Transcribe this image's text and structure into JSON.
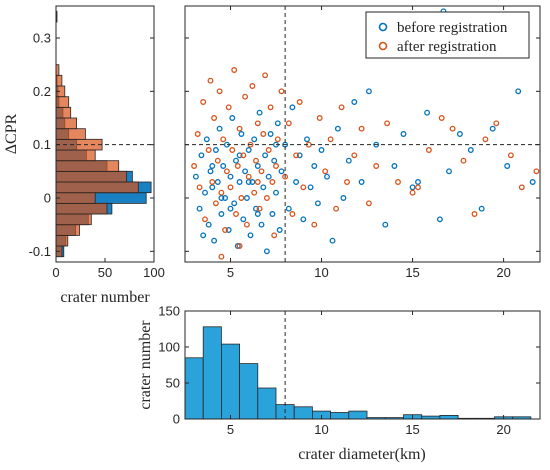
{
  "chart_data": [
    {
      "id": "scatter",
      "type": "scatter",
      "ylabel": "ΔCPR",
      "xlim": [
        2.5,
        22
      ],
      "ylim": [
        -0.12,
        0.36
      ],
      "xticks": [
        5,
        10,
        15,
        20
      ],
      "yticks": [
        -0.1,
        0,
        0.1,
        0.2,
        0.3
      ],
      "ytick_labels": [
        "-0.1",
        "0",
        "0.1",
        "0.2",
        "0.3"
      ],
      "legend_position": "top-right",
      "reference_lines": {
        "x": 8,
        "y": 0.1
      },
      "series": [
        {
          "name": "before registration",
          "color": "#0072BD",
          "points": [
            [
              3.1,
              0.04
            ],
            [
              3.3,
              -0.02
            ],
            [
              3.4,
              0.08
            ],
            [
              3.6,
              0.01
            ],
            [
              3.7,
              0.11
            ],
            [
              3.8,
              -0.05
            ],
            [
              3.9,
              0.05
            ],
            [
              4.0,
              0.02
            ],
            [
              4.1,
              -0.08
            ],
            [
              4.2,
              0.09
            ],
            [
              4.3,
              0.03
            ],
            [
              4.4,
              0.13
            ],
            [
              4.5,
              -0.03
            ],
            [
              4.6,
              0.06
            ],
            [
              4.7,
              0.0
            ],
            [
              4.8,
              0.1
            ],
            [
              4.9,
              -0.06
            ],
            [
              5.0,
              0.04
            ],
            [
              5.1,
              0.15
            ],
            [
              5.2,
              -0.01
            ],
            [
              5.3,
              0.07
            ],
            [
              5.4,
              -0.09
            ],
            [
              5.5,
              0.03
            ],
            [
              5.6,
              0.12
            ],
            [
              5.7,
              -0.04
            ],
            [
              5.8,
              0.05
            ],
            [
              5.9,
              0.0
            ],
            [
              6.0,
              0.09
            ],
            [
              6.1,
              -0.07
            ],
            [
              6.2,
              0.03
            ],
            [
              6.3,
              0.11
            ],
            [
              6.4,
              -0.02
            ],
            [
              6.5,
              0.06
            ],
            [
              6.6,
              0.16
            ],
            [
              6.7,
              -0.05
            ],
            [
              6.8,
              0.02
            ],
            [
              6.9,
              0.08
            ],
            [
              7.0,
              -0.1
            ],
            [
              7.1,
              0.04
            ],
            [
              7.2,
              0.12
            ],
            [
              7.3,
              -0.03
            ],
            [
              7.4,
              0.07
            ],
            [
              7.5,
              0.01
            ],
            [
              7.6,
              0.14
            ],
            [
              7.7,
              -0.06
            ],
            [
              7.8,
              0.05
            ],
            [
              8.0,
              0.1
            ],
            [
              8.2,
              -0.02
            ],
            [
              8.4,
              0.17
            ],
            [
              8.6,
              0.03
            ],
            [
              8.8,
              0.08
            ],
            [
              9.0,
              -0.04
            ],
            [
              9.2,
              0.11
            ],
            [
              9.4,
              0.02
            ],
            [
              9.6,
              0.06
            ],
            [
              9.8,
              -0.01
            ],
            [
              10.0,
              0.09
            ],
            [
              10.3,
              0.04
            ],
            [
              10.6,
              -0.08
            ],
            [
              10.9,
              0.13
            ],
            [
              11.2,
              0.0
            ],
            [
              11.5,
              0.07
            ],
            [
              11.8,
              0.18
            ],
            [
              12.2,
              0.03
            ],
            [
              12.6,
              0.2
            ],
            [
              13.0,
              0.1
            ],
            [
              13.5,
              -0.05
            ],
            [
              14.0,
              0.06
            ],
            [
              14.5,
              0.12
            ],
            [
              15.0,
              0.02
            ],
            [
              15.3,
              0.03
            ],
            [
              15.8,
              0.16
            ],
            [
              16.5,
              -0.04
            ],
            [
              17.0,
              0.05
            ],
            [
              17.6,
              0.12
            ],
            [
              18.2,
              0.09
            ],
            [
              18.8,
              -0.02
            ],
            [
              19.4,
              0.13
            ],
            [
              20.2,
              0.06
            ],
            [
              20.8,
              0.2
            ],
            [
              21.6,
              0.03
            ],
            [
              16.7,
              0.35
            ],
            [
              3.5,
              -0.07
            ],
            [
              4.5,
              0.0
            ],
            [
              5.5,
              0.08
            ],
            [
              6.5,
              -0.03
            ],
            [
              7.5,
              0.1
            ],
            [
              4.0,
              0.06
            ],
            [
              5.0,
              -0.02
            ],
            [
              6.0,
              0.03
            ]
          ]
        },
        {
          "name": "after registration",
          "color": "#D95319",
          "points": [
            [
              3.0,
              0.06
            ],
            [
              3.2,
              0.12
            ],
            [
              3.3,
              0.02
            ],
            [
              3.5,
              0.18
            ],
            [
              3.6,
              -0.04
            ],
            [
              3.8,
              0.09
            ],
            [
              3.9,
              0.22
            ],
            [
              4.0,
              0.03
            ],
            [
              4.1,
              0.15
            ],
            [
              4.2,
              -0.01
            ],
            [
              4.3,
              0.07
            ],
            [
              4.4,
              0.2
            ],
            [
              4.5,
              0.01
            ],
            [
              4.6,
              0.11
            ],
            [
              4.7,
              -0.06
            ],
            [
              4.8,
              0.05
            ],
            [
              4.9,
              0.17
            ],
            [
              5.0,
              0.02
            ],
            [
              5.1,
              0.09
            ],
            [
              5.2,
              0.24
            ],
            [
              5.3,
              -0.03
            ],
            [
              5.4,
              0.06
            ],
            [
              5.5,
              0.13
            ],
            [
              5.6,
              0.0
            ],
            [
              5.7,
              0.08
            ],
            [
              5.8,
              0.19
            ],
            [
              5.9,
              -0.05
            ],
            [
              6.0,
              0.04
            ],
            [
              6.1,
              0.1
            ],
            [
              6.2,
              0.21
            ],
            [
              6.3,
              0.01
            ],
            [
              6.4,
              0.07
            ],
            [
              6.5,
              0.14
            ],
            [
              6.6,
              -0.02
            ],
            [
              6.7,
              0.05
            ],
            [
              6.8,
              0.12
            ],
            [
              6.9,
              0.23
            ],
            [
              7.0,
              0.0
            ],
            [
              7.1,
              0.09
            ],
            [
              7.2,
              0.17
            ],
            [
              7.3,
              0.03
            ],
            [
              7.4,
              -0.07
            ],
            [
              7.5,
              0.06
            ],
            [
              7.6,
              0.11
            ],
            [
              7.8,
              0.2
            ],
            [
              8.0,
              0.04
            ],
            [
              8.2,
              0.14
            ],
            [
              8.4,
              -0.03
            ],
            [
              8.6,
              0.08
            ],
            [
              8.8,
              0.18
            ],
            [
              9.0,
              0.02
            ],
            [
              9.3,
              0.1
            ],
            [
              9.6,
              -0.05
            ],
            [
              9.9,
              0.15
            ],
            [
              10.2,
              0.05
            ],
            [
              10.5,
              0.11
            ],
            [
              10.8,
              -0.02
            ],
            [
              11.1,
              0.17
            ],
            [
              11.4,
              0.03
            ],
            [
              11.8,
              0.08
            ],
            [
              12.2,
              0.13
            ],
            [
              12.6,
              -0.01
            ],
            [
              13.0,
              0.06
            ],
            [
              13.6,
              0.14
            ],
            [
              14.2,
              0.03
            ],
            [
              15.0,
              0.01
            ],
            [
              15.3,
              0.02
            ],
            [
              15.9,
              0.09
            ],
            [
              16.6,
              0.15
            ],
            [
              17.2,
              0.13
            ],
            [
              17.8,
              0.07
            ],
            [
              18.4,
              -0.03
            ],
            [
              19.0,
              0.11
            ],
            [
              19.6,
              0.14
            ],
            [
              20.4,
              0.08
            ],
            [
              21.0,
              0.02
            ],
            [
              21.8,
              0.05
            ],
            [
              4.5,
              -0.11
            ],
            [
              5.5,
              -0.09
            ],
            [
              6.5,
              0.03
            ]
          ]
        }
      ]
    },
    {
      "id": "left_hist",
      "type": "bar",
      "orientation": "horizontal",
      "xlabel": "crater number",
      "xlim": [
        0,
        100
      ],
      "xticks": [
        0,
        50,
        100
      ],
      "ylim": [
        -0.12,
        0.36
      ],
      "reference_lines": {
        "y": 0.1
      },
      "bin_width": 0.02,
      "series": [
        {
          "name": "before registration",
          "color": "#0072BD",
          "bins": [
            [
              -0.1,
              8
            ],
            [
              -0.08,
              10
            ],
            [
              -0.06,
              20
            ],
            [
              -0.04,
              33
            ],
            [
              -0.02,
              57
            ],
            [
              0.0,
              92
            ],
            [
              0.02,
              97
            ],
            [
              0.04,
              78
            ],
            [
              0.06,
              52
            ],
            [
              0.08,
              31
            ],
            [
              0.1,
              21
            ],
            [
              0.12,
              13
            ],
            [
              0.14,
              9
            ],
            [
              0.16,
              7
            ],
            [
              0.18,
              3
            ],
            [
              0.2,
              2
            ],
            [
              0.22,
              1
            ],
            [
              0.34,
              1
            ]
          ]
        },
        {
          "name": "after registration",
          "color": "#D95319",
          "bins": [
            [
              -0.1,
              6
            ],
            [
              -0.08,
              12
            ],
            [
              -0.06,
              24
            ],
            [
              -0.04,
              36
            ],
            [
              -0.02,
              52
            ],
            [
              0.0,
              40
            ],
            [
              0.02,
              84
            ],
            [
              0.04,
              72
            ],
            [
              0.06,
              64
            ],
            [
              0.08,
              40
            ],
            [
              0.1,
              47
            ],
            [
              0.12,
              30
            ],
            [
              0.14,
              21
            ],
            [
              0.16,
              15
            ],
            [
              0.18,
              13
            ],
            [
              0.2,
              9
            ],
            [
              0.22,
              6
            ],
            [
              0.24,
              3
            ]
          ]
        }
      ]
    },
    {
      "id": "bottom_hist",
      "type": "bar",
      "xlabel": "crater diameter(km)",
      "ylabel": "crater number",
      "xlim": [
        2.5,
        22
      ],
      "ylim": [
        0,
        150
      ],
      "xticks": [
        5,
        10,
        15,
        20
      ],
      "yticks": [
        0,
        50,
        100,
        150
      ],
      "reference_lines": {
        "x": 8
      },
      "color": "#2AA3DB",
      "bins": [
        [
          2.5,
          3.5,
          85
        ],
        [
          3.5,
          4.5,
          128
        ],
        [
          4.5,
          5.5,
          104
        ],
        [
          5.5,
          6.5,
          77
        ],
        [
          6.5,
          7.5,
          43
        ],
        [
          7.5,
          8.5,
          20
        ],
        [
          8.5,
          9.5,
          17
        ],
        [
          9.5,
          10.5,
          11
        ],
        [
          10.5,
          11.5,
          9
        ],
        [
          11.5,
          12.5,
          11
        ],
        [
          12.5,
          13.5,
          2
        ],
        [
          13.5,
          14.5,
          2
        ],
        [
          14.5,
          15.5,
          6
        ],
        [
          15.5,
          16.5,
          4
        ],
        [
          16.5,
          17.5,
          5
        ],
        [
          17.5,
          18.5,
          1
        ],
        [
          18.5,
          19.5,
          1
        ],
        [
          19.5,
          20.5,
          3
        ],
        [
          20.5,
          21.5,
          3
        ]
      ]
    }
  ]
}
